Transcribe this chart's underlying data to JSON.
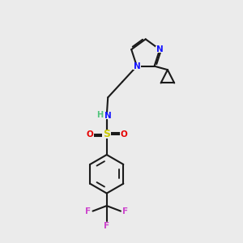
{
  "bg_color": "#ebebeb",
  "bond_color": "#1a1a1a",
  "N_color": "#1414ff",
  "S_color": "#c8c800",
  "O_color": "#e60000",
  "F_color": "#cc44cc",
  "H_color": "#4fc47a",
  "lw": 1.5,
  "xlim": [
    0,
    10
  ],
  "ylim": [
    0,
    10
  ]
}
